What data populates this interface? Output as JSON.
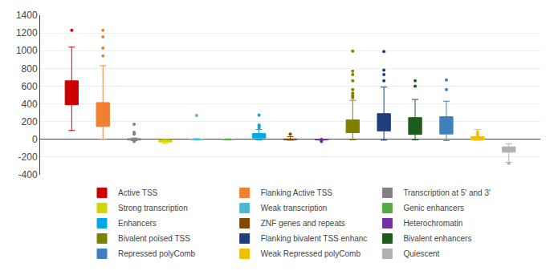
{
  "chart_data": {
    "type": "box",
    "ylim": [
      -400,
      1400
    ],
    "yticks": [
      -400,
      -200,
      0,
      200,
      400,
      600,
      800,
      1000,
      1200,
      1400
    ],
    "grid": true,
    "legend": "bottom",
    "tick_labels": "y",
    "series": [
      {
        "name": "Active TSS",
        "color": "#cc0000",
        "q1": 390,
        "median": 430,
        "q3": 660,
        "whislo": 100,
        "whishi": 1040,
        "fliers": [
          1230
        ]
      },
      {
        "name": "Flanking Active TSS",
        "color": "#f08030",
        "q1": 145,
        "median": 275,
        "q3": 415,
        "whislo": 0,
        "whishi": 830,
        "fliers": [
          940,
          1030,
          1155,
          1230
        ]
      },
      {
        "name": "Transcription at 5' and 3'",
        "color": "#808080",
        "q1": -8,
        "median": 0,
        "q3": 8,
        "whislo": -15,
        "whishi": 15,
        "fliers": [
          170,
          -25,
          60,
          80
        ]
      },
      {
        "name": "Strong transcription",
        "color": "#d4d400",
        "q1": -30,
        "median": -18,
        "q3": -5,
        "whislo": -45,
        "whishi": -2,
        "fliers": []
      },
      {
        "name": "Weak transcription",
        "color": "#4db8d4",
        "q1": -3,
        "median": 0,
        "q3": 3,
        "whislo": -8,
        "whishi": 8,
        "fliers": [
          270
        ]
      },
      {
        "name": "Genic enhancers",
        "color": "#55aa44",
        "q1": -2,
        "median": 0,
        "q3": 2,
        "whislo": -5,
        "whishi": 5,
        "fliers": []
      },
      {
        "name": "Enhancers",
        "color": "#00a8e8",
        "q1": 15,
        "median": 40,
        "q3": 65,
        "whislo": -5,
        "whishi": 110,
        "fliers": [
          130,
          150,
          160,
          275
        ]
      },
      {
        "name": "ZNF genes and repeats",
        "color": "#804800",
        "q1": -5,
        "median": 0,
        "q3": 5,
        "whislo": -10,
        "whishi": 30,
        "fliers": [
          60
        ]
      },
      {
        "name": "Heterochromatin",
        "color": "#7030a0",
        "q1": -5,
        "median": -2,
        "q3": 0,
        "whislo": -10,
        "whishi": 2,
        "fliers": [
          -25,
          0
        ]
      },
      {
        "name": "Bivalent poised TSS",
        "color": "#808000",
        "q1": 75,
        "median": 135,
        "q3": 220,
        "whislo": -5,
        "whishi": 440,
        "fliers": [
          470,
          490,
          520,
          560,
          660,
          730,
          770,
          995
        ]
      },
      {
        "name": "Flanking bivalent TSS enhanc",
        "color": "#1f3d7a",
        "q1": 95,
        "median": 145,
        "q3": 290,
        "whislo": -10,
        "whishi": 590,
        "fliers": [
          660,
          730,
          780,
          990
        ]
      },
      {
        "name": "Bivalent enhancers",
        "color": "#1e5c1e",
        "q1": 55,
        "median": 130,
        "q3": 245,
        "whislo": -5,
        "whishi": 450,
        "fliers": [
          600,
          660
        ]
      },
      {
        "name": "Repressed polyComb",
        "color": "#4080c0",
        "q1": 60,
        "median": 150,
        "q3": 255,
        "whislo": -15,
        "whishi": 430,
        "fliers": [
          560,
          670
        ]
      },
      {
        "name": "Weak Repressed polyComb",
        "color": "#f0c000",
        "q1": -5,
        "median": 10,
        "q3": 30,
        "whislo": -10,
        "whishi": 110,
        "fliers": [
          40,
          60,
          80
        ]
      },
      {
        "name": "Quiescent",
        "color": "#b0b0b0",
        "q1": -145,
        "median": -115,
        "q3": -85,
        "whislo": -260,
        "whishi": -50,
        "fliers": [
          -270
        ]
      }
    ]
  }
}
